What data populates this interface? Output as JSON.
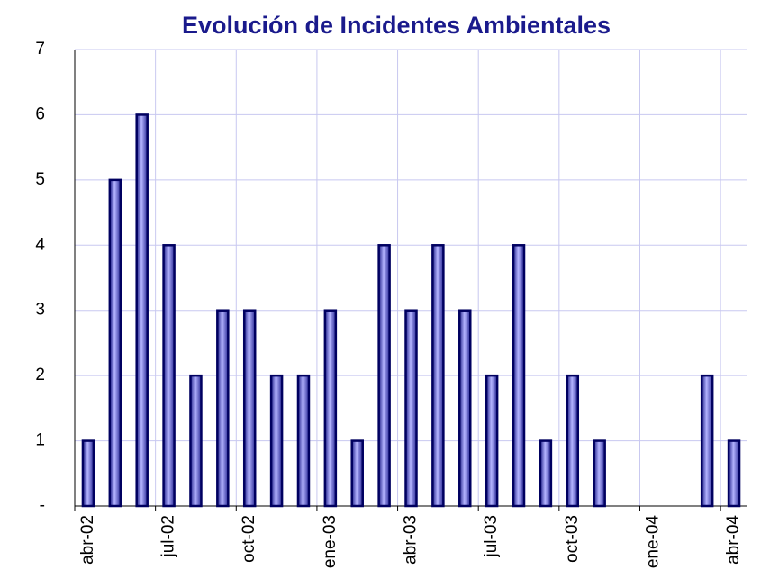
{
  "chart_data": {
    "type": "bar",
    "title": "Evolución de Incidentes Ambientales",
    "categories": [
      "abr-02",
      null,
      null,
      "jul-02",
      null,
      null,
      "oct-02",
      null,
      null,
      "ene-03",
      null,
      null,
      "abr-03",
      null,
      null,
      "jul-03",
      null,
      null,
      "oct-03",
      null,
      null,
      "ene-04",
      null,
      null,
      "abr-04"
    ],
    "values": [
      1,
      5,
      6,
      4,
      2,
      3,
      3,
      2,
      2,
      3,
      1,
      4,
      3,
      4,
      3,
      2,
      4,
      1,
      2,
      1,
      0,
      0,
      0,
      2,
      1
    ],
    "color": "#3030a8",
    "ylim": [
      0,
      7
    ],
    "yticks": [
      {
        "value": 0,
        "label": "-"
      },
      1,
      2,
      3,
      4,
      5,
      6,
      7
    ],
    "grid": true
  }
}
